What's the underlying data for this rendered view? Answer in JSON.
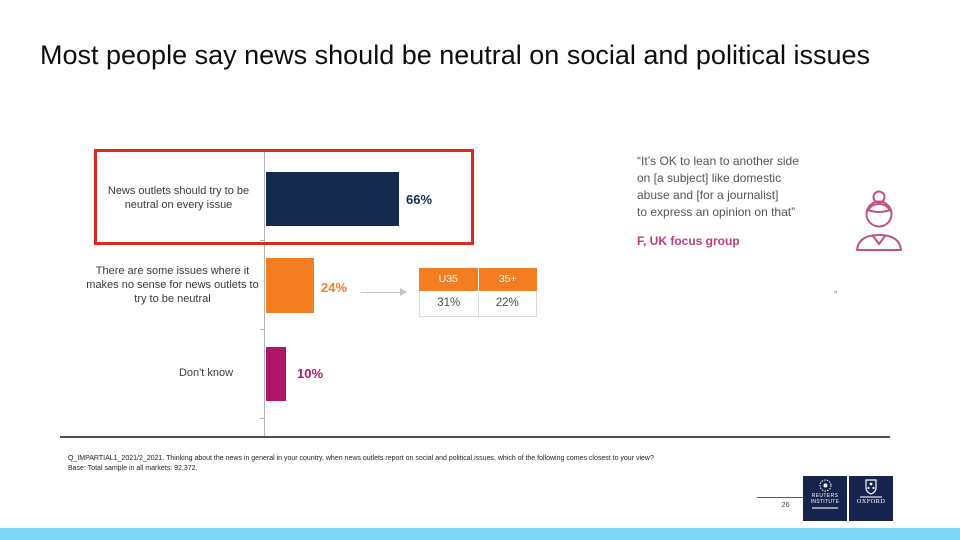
{
  "slide": {
    "title": "Most people say news should be neutral on social and political issues",
    "page_number": "26"
  },
  "chart_data": {
    "type": "bar",
    "orientation": "horizontal",
    "categories": [
      "News outlets should try to be neutral on every issue",
      "There are some issues where it makes no sense for news outlets to try to be neutral",
      "Don't know"
    ],
    "values": [
      66,
      24,
      10
    ],
    "value_labels": [
      "66%",
      "24%",
      "10%"
    ],
    "bar_colors": [
      "#132A4E",
      "#F47D21",
      "#B0146B"
    ],
    "xlim": [
      0,
      100
    ],
    "grid": false,
    "highlight_box_color": "#DB2A1C",
    "breakdown_table": {
      "linked_category": "There are some issues where it makes no sense for news outlets to try to be neutral",
      "columns": [
        "U35",
        "35+"
      ],
      "values": [
        "31%",
        "22%"
      ],
      "header_bg": "#F47D21"
    }
  },
  "quote": {
    "line1": "“It’s OK to lean to another side",
    "line2": "on [a subject] like domestic",
    "line3": "abuse and [for a journalist]",
    "line4": "to express an opinion on that”",
    "attribution": "F, UK focus group",
    "attribution_color": "#B93D7E",
    "icon": "female-journalist-icon",
    "icon_color": "#C15286"
  },
  "stray_mark": "”",
  "footnote": {
    "line1": "Q_IMPARTIAL1_2021/2_2021. Thinking about the news in general in your country, when news outlets report on social and political issues, which of the following comes closest to your view?",
    "line2": "Base: Total sample in all markets: 92,372."
  },
  "logos": {
    "reuters": {
      "line1": "REUTERS",
      "line2": "INSTITUTE"
    },
    "oxford": {
      "word": "OXFORD"
    },
    "bg_color": "#16234D"
  },
  "accent": {
    "bottom_strip": "#7BD7F2"
  }
}
